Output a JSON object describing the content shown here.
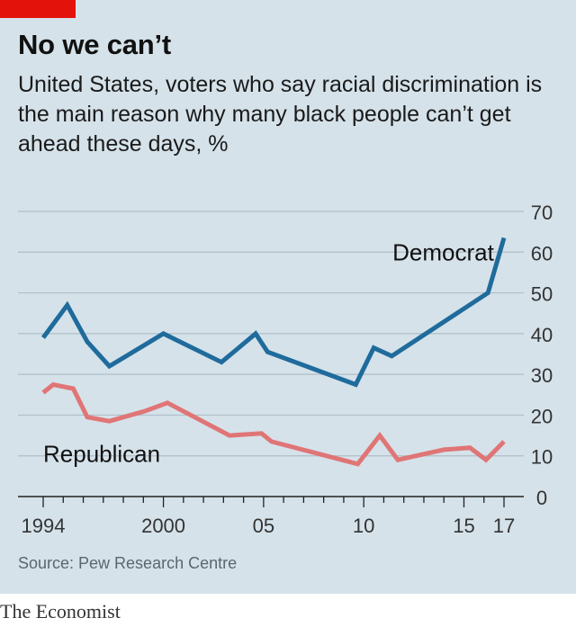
{
  "header": {
    "title": "No we can’t",
    "subtitle": "United States, voters who say racial discrimination is the main reason why many black people can’t get ahead these days, %",
    "tag_color": "#e3120b"
  },
  "footer": {
    "source": "Source: Pew Research Centre",
    "brand": "The Economist"
  },
  "chart_data": {
    "type": "line",
    "title": "No we can’t",
    "subtitle": "United States, voters who say racial discrimination is the main reason why many black people can’t get ahead these days, %",
    "ylabel": "%",
    "ylim": [
      0,
      70
    ],
    "xlim": [
      1994,
      2017
    ],
    "y_ticks": [
      "0",
      "10",
      "20",
      "30",
      "40",
      "50",
      "60",
      "70"
    ],
    "y_tick_values": [
      0,
      10,
      20,
      30,
      40,
      50,
      60,
      70
    ],
    "x_tick_labels": [
      "1994",
      "2000",
      "05",
      "10",
      "15",
      "17"
    ],
    "x_tick_values": [
      1994,
      2000,
      2005,
      2010,
      2015,
      2017
    ],
    "grid": true,
    "series": [
      {
        "name": "Democrat",
        "color": "#1f6b9c",
        "x": [
          1994,
          1995.2,
          1996.2,
          1997.3,
          2000,
          2002.9,
          2004.6,
          2005.2,
          2009.6,
          2010.5,
          2011.4,
          2016.2,
          2017
        ],
        "y": [
          39,
          47,
          38,
          32,
          40,
          33,
          40,
          35.5,
          27.5,
          36.5,
          34.5,
          50,
          63.5
        ]
      },
      {
        "name": "Republican",
        "color": "#e07576",
        "x": [
          1994,
          1994.5,
          1995.5,
          1996.2,
          1997.3,
          1999.1,
          2000.2,
          2003.3,
          2004.9,
          2005.4,
          2009.7,
          2010.8,
          2011.7,
          2014,
          2015.3,
          2016.1,
          2017
        ],
        "y": [
          25.5,
          27.5,
          26.5,
          19.5,
          18.5,
          21,
          23,
          15,
          15.5,
          13.5,
          8,
          15,
          9,
          11.5,
          12,
          9,
          13.5
        ]
      }
    ]
  }
}
